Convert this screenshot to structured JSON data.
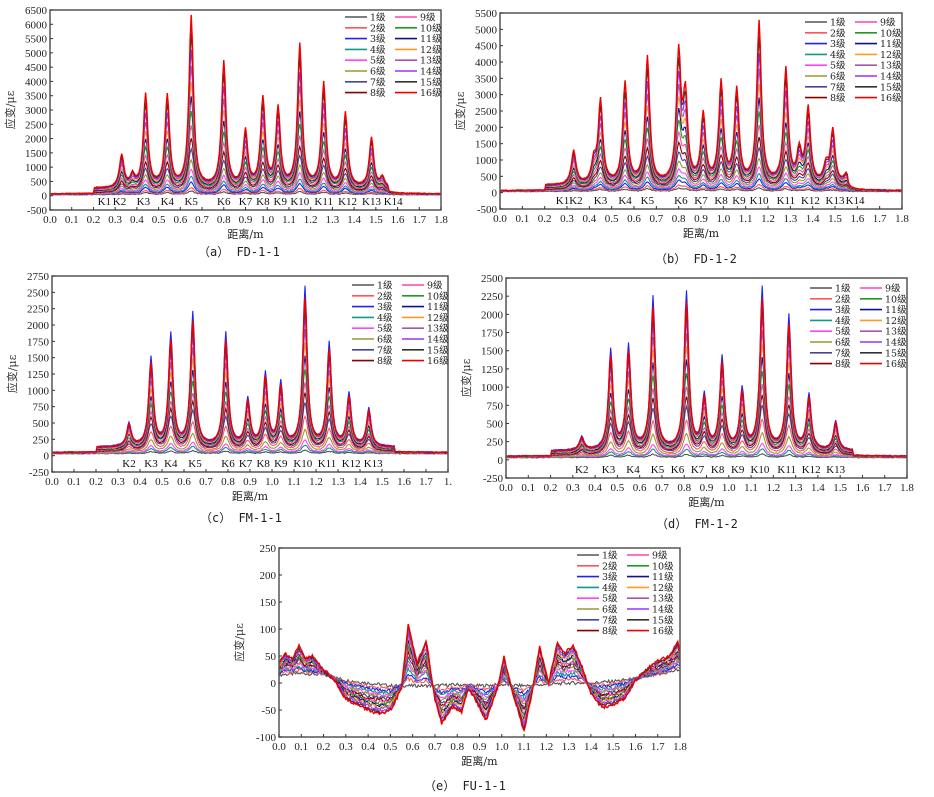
{
  "figure": {
    "legend_labels": [
      "1级",
      "2级",
      "3级",
      "4级",
      "5级",
      "6级",
      "7级",
      "8级",
      "9级",
      "10级",
      "11级",
      "12级",
      "13级",
      "14级",
      "15级",
      "16级"
    ],
    "series_colors": [
      "#555555",
      "#ff5555",
      "#2222ee",
      "#119988",
      "#ff44ff",
      "#999933",
      "#444499",
      "#880000",
      "#ff44aa",
      "#229922",
      "#111188",
      "#ff9922",
      "#aa55aa",
      "#9933ff",
      "#333333",
      "#ee0000"
    ]
  },
  "chart_data": [
    {
      "id": "a",
      "type": "line",
      "caption": "（a） FD-1-1",
      "xlabel": "距离/m",
      "ylabel": "应变/με",
      "xlim": [
        0.0,
        1.8
      ],
      "ylim": [
        -500,
        6500
      ],
      "xticks": [
        "0.0",
        "0.1",
        "0.2",
        "0.3",
        "0.4",
        "0.5",
        "0.6",
        "0.7",
        "0.8",
        "0.9",
        "1.0",
        "1.1",
        "1.2",
        "1.3",
        "1.4",
        "1.5",
        "1.6",
        "1.7",
        "1.8"
      ],
      "yticks": [
        "-500",
        "0",
        "500",
        "1000",
        "1500",
        "2000",
        "2500",
        "3000",
        "3500",
        "4000",
        "4500",
        "5000",
        "5500",
        "6000",
        "6500"
      ],
      "legend_position": "top-right",
      "grid": false,
      "markers": [
        {
          "label": "K1",
          "x": 0.25
        },
        {
          "label": "K2",
          "x": 0.32
        },
        {
          "label": "K3",
          "x": 0.43
        },
        {
          "label": "K4",
          "x": 0.54
        },
        {
          "label": "K5",
          "x": 0.65
        },
        {
          "label": "K6",
          "x": 0.8
        },
        {
          "label": "K7",
          "x": 0.9
        },
        {
          "label": "K8",
          "x": 0.98
        },
        {
          "label": "K9",
          "x": 1.06
        },
        {
          "label": "K10",
          "x": 1.15
        },
        {
          "label": "K11",
          "x": 1.26
        },
        {
          "label": "K12",
          "x": 1.37
        },
        {
          "label": "K13",
          "x": 1.48
        },
        {
          "label": "K14",
          "x": 1.58
        }
      ],
      "peaks_max_series": [
        {
          "x": 0.33,
          "y": 1200
        },
        {
          "x": 0.38,
          "y": 450
        },
        {
          "x": 0.44,
          "y": 3300
        },
        {
          "x": 0.54,
          "y": 3250
        },
        {
          "x": 0.65,
          "y": 6050
        },
        {
          "x": 0.8,
          "y": 4450
        },
        {
          "x": 0.9,
          "y": 2000
        },
        {
          "x": 0.98,
          "y": 3150
        },
        {
          "x": 1.05,
          "y": 2800
        },
        {
          "x": 1.15,
          "y": 5050
        },
        {
          "x": 1.26,
          "y": 3700
        },
        {
          "x": 1.36,
          "y": 2650
        },
        {
          "x": 1.48,
          "y": 1800
        },
        {
          "x": 1.53,
          "y": 400
        }
      ],
      "baseline": 60
    },
    {
      "id": "b",
      "type": "line",
      "caption": "（b） FD-1-2",
      "xlabel": "距离/m",
      "ylabel": "应变/με",
      "xlim": [
        0.0,
        1.8
      ],
      "ylim": [
        -500,
        5500
      ],
      "xticks": [
        "0.0",
        "0.1",
        "0.2",
        "0.3",
        "0.4",
        "0.5",
        "0.6",
        "0.7",
        "0.8",
        "0.9",
        "1.0",
        "1.1",
        "1.2",
        "1.3",
        "1.4",
        "1.5",
        "1.6",
        "1.7",
        "1.8"
      ],
      "yticks": [
        "-500",
        "0",
        "500",
        "1000",
        "1500",
        "2000",
        "2500",
        "3000",
        "3500",
        "4000",
        "4500",
        "5000",
        "5500"
      ],
      "legend_position": "top-right",
      "grid": false,
      "markers": [
        {
          "label": "K1",
          "x": 0.28
        },
        {
          "label": "K2",
          "x": 0.34
        },
        {
          "label": "K3",
          "x": 0.45
        },
        {
          "label": "K4",
          "x": 0.56
        },
        {
          "label": "K5",
          "x": 0.66
        },
        {
          "label": "K6",
          "x": 0.81
        },
        {
          "label": "K7",
          "x": 0.9
        },
        {
          "label": "K8",
          "x": 0.99
        },
        {
          "label": "K9",
          "x": 1.07
        },
        {
          "label": "K10",
          "x": 1.16
        },
        {
          "label": "K11",
          "x": 1.28
        },
        {
          "label": "K12",
          "x": 1.39
        },
        {
          "label": "K13",
          "x": 1.5
        },
        {
          "label": "K14",
          "x": 1.59
        }
      ],
      "peaks_max_series": [
        {
          "x": 0.33,
          "y": 1100
        },
        {
          "x": 0.42,
          "y": 700
        },
        {
          "x": 0.45,
          "y": 2600
        },
        {
          "x": 0.56,
          "y": 3150
        },
        {
          "x": 0.66,
          "y": 3950
        },
        {
          "x": 0.8,
          "y": 3950
        },
        {
          "x": 0.83,
          "y": 2600
        },
        {
          "x": 0.91,
          "y": 2150
        },
        {
          "x": 0.99,
          "y": 3150
        },
        {
          "x": 1.06,
          "y": 2900
        },
        {
          "x": 1.16,
          "y": 5000
        },
        {
          "x": 1.28,
          "y": 3550
        },
        {
          "x": 1.34,
          "y": 1000
        },
        {
          "x": 1.38,
          "y": 2350
        },
        {
          "x": 1.46,
          "y": 600
        },
        {
          "x": 1.49,
          "y": 1700
        },
        {
          "x": 1.55,
          "y": 350
        }
      ],
      "baseline": 60
    },
    {
      "id": "c",
      "type": "line",
      "caption": "（c） FM-1-1",
      "xlabel": "距离/m",
      "ylabel": "应变/με",
      "xlim": [
        0.0,
        1.8
      ],
      "ylim": [
        -250,
        2750
      ],
      "xticks": [
        "0.0",
        "0.1",
        "0.2",
        "0.3",
        "0.4",
        "0.5",
        "0.6",
        "0.7",
        "0.8",
        "0.9",
        "1.0",
        "1.1",
        "1.2",
        "1.3",
        "1.4",
        "1.5",
        "1.6",
        "1.7",
        "1."
      ],
      "yticks": [
        "-250",
        "0",
        "250",
        "500",
        "750",
        "1000",
        "1250",
        "1500",
        "1750",
        "2000",
        "2250",
        "2500",
        "2750"
      ],
      "legend_position": "top-right",
      "grid": false,
      "markers": [
        {
          "label": "K2",
          "x": 0.35
        },
        {
          "label": "K3",
          "x": 0.45
        },
        {
          "label": "K4",
          "x": 0.54
        },
        {
          "label": "K5",
          "x": 0.65
        },
        {
          "label": "K6",
          "x": 0.8
        },
        {
          "label": "K7",
          "x": 0.88
        },
        {
          "label": "K8",
          "x": 0.96
        },
        {
          "label": "K9",
          "x": 1.04
        },
        {
          "label": "K10",
          "x": 1.14
        },
        {
          "label": "K11",
          "x": 1.25
        },
        {
          "label": "K12",
          "x": 1.36
        },
        {
          "label": "K13",
          "x": 1.46
        }
      ],
      "peaks_max_series": [
        {
          "x": 0.35,
          "y": 400
        },
        {
          "x": 0.45,
          "y": 1400
        },
        {
          "x": 0.54,
          "y": 1760
        },
        {
          "x": 0.64,
          "y": 2090
        },
        {
          "x": 0.79,
          "y": 1780
        },
        {
          "x": 0.89,
          "y": 760
        },
        {
          "x": 0.97,
          "y": 1160
        },
        {
          "x": 1.04,
          "y": 1010
        },
        {
          "x": 1.15,
          "y": 2470
        },
        {
          "x": 1.26,
          "y": 1620
        },
        {
          "x": 1.35,
          "y": 850
        },
        {
          "x": 1.44,
          "y": 630
        }
      ],
      "baseline": 50
    },
    {
      "id": "d",
      "type": "line",
      "caption": "（d） FM-1-2",
      "xlabel": "距离/m",
      "ylabel": "应变/με",
      "xlim": [
        0.0,
        1.8
      ],
      "ylim": [
        -250,
        2500
      ],
      "xticks": [
        "0.0",
        "0.1",
        "0.2",
        "0.3",
        "0.4",
        "0.5",
        "0.6",
        "0.7",
        "0.8",
        "0.9",
        "1.0",
        "1.1",
        "1.2",
        "1.3",
        "1.4",
        "1.5",
        "1.6",
        "1.7",
        "1.8"
      ],
      "yticks": [
        "-250",
        "0",
        "250",
        "500",
        "750",
        "1000",
        "1250",
        "1500",
        "1750",
        "2000",
        "2250",
        "2500"
      ],
      "legend_position": "top-right",
      "grid": false,
      "markers": [
        {
          "label": "K2",
          "x": 0.34
        },
        {
          "label": "K3",
          "x": 0.46
        },
        {
          "label": "K4",
          "x": 0.57
        },
        {
          "label": "K5",
          "x": 0.68
        },
        {
          "label": "K6",
          "x": 0.77
        },
        {
          "label": "K7",
          "x": 0.86
        },
        {
          "label": "K8",
          "x": 0.95
        },
        {
          "label": "K9",
          "x": 1.04
        },
        {
          "label": "K10",
          "x": 1.14
        },
        {
          "label": "K11",
          "x": 1.26
        },
        {
          "label": "K12",
          "x": 1.37
        },
        {
          "label": "K13",
          "x": 1.48
        }
      ],
      "peaks_max_series": [
        {
          "x": 0.34,
          "y": 230
        },
        {
          "x": 0.47,
          "y": 1420
        },
        {
          "x": 0.55,
          "y": 1480
        },
        {
          "x": 0.66,
          "y": 2150
        },
        {
          "x": 0.81,
          "y": 2210
        },
        {
          "x": 0.89,
          "y": 780
        },
        {
          "x": 0.97,
          "y": 1320
        },
        {
          "x": 1.06,
          "y": 870
        },
        {
          "x": 1.15,
          "y": 2270
        },
        {
          "x": 1.27,
          "y": 1890
        },
        {
          "x": 1.36,
          "y": 800
        },
        {
          "x": 1.48,
          "y": 450
        }
      ],
      "baseline": 50
    },
    {
      "id": "e",
      "type": "line",
      "caption": "（e） FU-1-1",
      "xlabel": "距离/m",
      "ylabel": "应变/με",
      "xlim": [
        0.0,
        1.8
      ],
      "ylim": [
        -100,
        250
      ],
      "xticks": [
        "0.0",
        "0.1",
        "0.2",
        "0.3",
        "0.4",
        "0.5",
        "0.6",
        "0.7",
        "0.8",
        "0.9",
        "1.0",
        "1.1",
        "1.2",
        "1.3",
        "1.4",
        "1.5",
        "1.6",
        "1.7",
        "1.8"
      ],
      "yticks": [
        "-100",
        "-50",
        "0",
        "50",
        "100",
        "150",
        "200",
        "250"
      ],
      "legend_position": "top-right",
      "grid": false,
      "markers": [],
      "series_16_points": [
        [
          0.0,
          40
        ],
        [
          0.03,
          55
        ],
        [
          0.06,
          45
        ],
        [
          0.09,
          68
        ],
        [
          0.12,
          45
        ],
        [
          0.15,
          50
        ],
        [
          0.2,
          25
        ],
        [
          0.25,
          5
        ],
        [
          0.3,
          -30
        ],
        [
          0.35,
          -40
        ],
        [
          0.4,
          -50
        ],
        [
          0.45,
          -58
        ],
        [
          0.5,
          -52
        ],
        [
          0.55,
          -10
        ],
        [
          0.58,
          110
        ],
        [
          0.62,
          35
        ],
        [
          0.66,
          80
        ],
        [
          0.7,
          -30
        ],
        [
          0.73,
          -75
        ],
        [
          0.78,
          -45
        ],
        [
          0.82,
          -55
        ],
        [
          0.85,
          -10
        ],
        [
          0.88,
          -30
        ],
        [
          0.93,
          -70
        ],
        [
          0.98,
          -10
        ],
        [
          1.01,
          48
        ],
        [
          1.05,
          -20
        ],
        [
          1.08,
          -60
        ],
        [
          1.1,
          -90
        ],
        [
          1.13,
          -30
        ],
        [
          1.17,
          68
        ],
        [
          1.21,
          0
        ],
        [
          1.25,
          75
        ],
        [
          1.28,
          55
        ],
        [
          1.32,
          70
        ],
        [
          1.36,
          30
        ],
        [
          1.4,
          -20
        ],
        [
          1.45,
          -45
        ],
        [
          1.5,
          -40
        ],
        [
          1.55,
          -30
        ],
        [
          1.6,
          5
        ],
        [
          1.65,
          25
        ],
        [
          1.7,
          40
        ],
        [
          1.75,
          50
        ],
        [
          1.79,
          75
        ],
        [
          1.8,
          55
        ]
      ],
      "series_1_points": [
        [
          0.0,
          15
        ],
        [
          0.1,
          18
        ],
        [
          0.2,
          15
        ],
        [
          0.3,
          5
        ],
        [
          0.4,
          0
        ],
        [
          0.5,
          -5
        ],
        [
          0.6,
          -5
        ],
        [
          0.7,
          -5
        ],
        [
          0.8,
          -3
        ],
        [
          0.9,
          -5
        ],
        [
          1.0,
          -3
        ],
        [
          1.1,
          -5
        ],
        [
          1.2,
          -3
        ],
        [
          1.3,
          0
        ],
        [
          1.4,
          0
        ],
        [
          1.5,
          3
        ],
        [
          1.6,
          8
        ],
        [
          1.7,
          15
        ],
        [
          1.8,
          25
        ]
      ]
    }
  ]
}
